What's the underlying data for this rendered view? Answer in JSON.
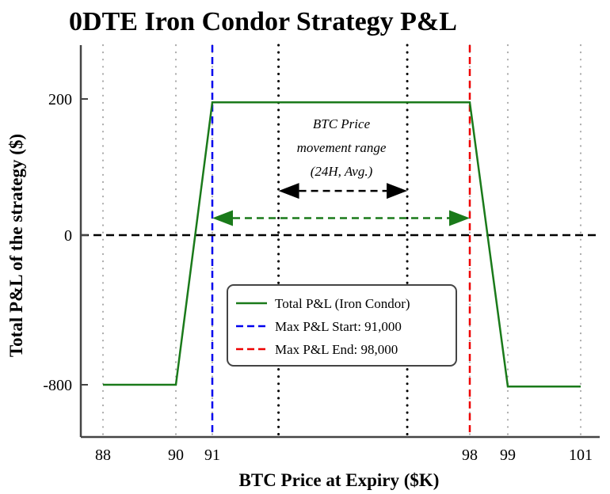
{
  "chart_data": {
    "type": "line",
    "title": "0DTE Iron Condor Strategy P&L",
    "xlabel": "BTC Price at Expiry ($K)",
    "ylabel": "Total P&L of the strategy ($)",
    "x_ticks": [
      88,
      90,
      91,
      98,
      99,
      101
    ],
    "y_ticks": [
      200,
      0,
      -800
    ],
    "xlim": [
      86.5,
      102.5
    ],
    "ylim": [
      -950,
      350
    ],
    "grid": "vertical dotted at x ticks",
    "series": [
      {
        "name": "Total P&L (Iron Condor)",
        "color": "#1a7a1a",
        "style": "solid",
        "points": [
          {
            "x": 88,
            "y": -800
          },
          {
            "x": 90,
            "y": -800
          },
          {
            "x": 91,
            "y": 195
          },
          {
            "x": 98,
            "y": 195
          },
          {
            "x": 99,
            "y": -805
          },
          {
            "x": 101,
            "y": -805
          }
        ]
      }
    ],
    "vlines": [
      {
        "name": "Max P&L Start: 91,000",
        "x": 91,
        "color": "#0000ee",
        "style": "dashed"
      },
      {
        "name": "Max P&L End: 98,000",
        "x": 98,
        "color": "#ee0000",
        "style": "dashed"
      },
      {
        "name": "range-start",
        "x": 92.8,
        "color": "#000000",
        "style": "dotted"
      },
      {
        "name": "range-end",
        "x": 96.3,
        "color": "#000000",
        "style": "dotted"
      }
    ],
    "hlines": [
      {
        "name": "zero-line",
        "y": 0,
        "color": "#000000",
        "style": "dashed"
      }
    ],
    "arrows": [
      {
        "name": "btc-range-arrow",
        "x_from": 92.8,
        "x_to": 96.3,
        "y": 65,
        "color": "#000000"
      },
      {
        "name": "max-profit-arrow",
        "x_from": 91,
        "x_to": 98,
        "y": 25,
        "color": "#1a7a1a"
      }
    ],
    "annotation": {
      "lines": [
        "BTC Price",
        "movement range",
        "(24H, Avg.)"
      ]
    },
    "legend": {
      "placement": "lower-center",
      "entries": [
        {
          "label": "Total P&L (Iron Condor)",
          "color": "#1a7a1a",
          "style": "solid"
        },
        {
          "label": "Max P&L Start: 91,000",
          "color": "#0000ee",
          "style": "dashed"
        },
        {
          "label": "Max P&L End: 98,000",
          "color": "#ee0000",
          "style": "dashed"
        }
      ]
    }
  }
}
